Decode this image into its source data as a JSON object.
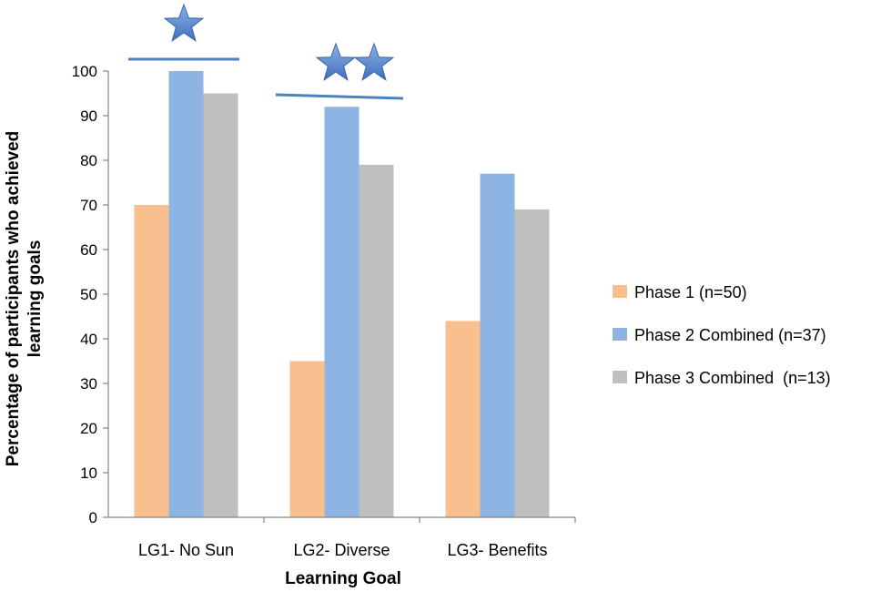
{
  "chart_data": {
    "type": "bar",
    "title": "",
    "xlabel": "Learning Goal",
    "ylabel_lines": [
      "Percentage of participants who achieved",
      "learning goals"
    ],
    "ylim": [
      0,
      100
    ],
    "yticks": [
      0,
      10,
      20,
      30,
      40,
      50,
      60,
      70,
      80,
      90,
      100
    ],
    "categories": [
      "LG1- No Sun",
      "LG2- Diverse",
      "LG3- Benefits"
    ],
    "series": [
      {
        "name": "Phase 1 (n=50)",
        "color": "#f9bf8f",
        "values": [
          70,
          35,
          44
        ]
      },
      {
        "name": "Phase 2 Combined (n=37)",
        "color": "#8eb4e3",
        "values": [
          100,
          92,
          77
        ]
      },
      {
        "name": "Phase 3 Combined  (n=13)",
        "color": "#bfbfbf",
        "values": [
          95,
          79,
          69
        ]
      }
    ],
    "legend_position": "right",
    "annotations": [
      {
        "category": "LG1- No Sun",
        "type": "significance",
        "stars": 1
      },
      {
        "category": "LG2- Diverse",
        "type": "significance",
        "stars": 2
      }
    ],
    "annotation_color": "#4f81bd"
  }
}
